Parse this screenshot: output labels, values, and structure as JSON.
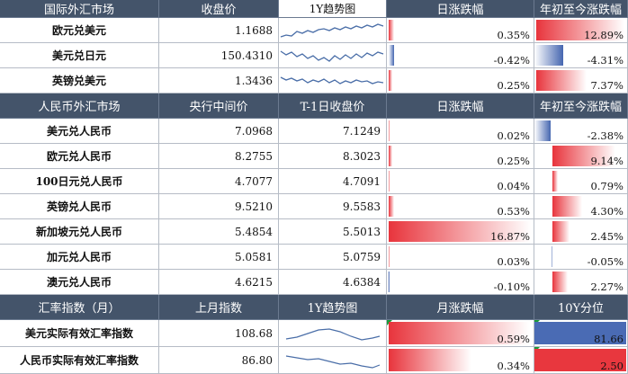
{
  "colors": {
    "header_bg": "#44546a",
    "positive": "#e8343c",
    "negative": "#4566b0",
    "spark_line": "#4a6ea8"
  },
  "section1": {
    "headers": [
      "国际外汇市场",
      "收盘价",
      "1Y趋势图",
      "日涨跌幅",
      "年初至今涨跌幅"
    ],
    "rows": [
      {
        "name": "欧元兑美元",
        "close": "1.1688",
        "day_chg": "0.35%",
        "day_val": 0.35,
        "ytd_chg": "12.89%",
        "ytd_val": 12.89
      },
      {
        "name": "美元兑日元",
        "close": "150.4310",
        "day_chg": "-0.42%",
        "day_val": -0.42,
        "ytd_chg": "-4.31%",
        "ytd_val": -4.31
      },
      {
        "name": "英镑兑美元",
        "close": "1.3436",
        "day_chg": "0.25%",
        "day_val": 0.25,
        "ytd_chg": "7.37%",
        "ytd_val": 7.37
      }
    ]
  },
  "section2": {
    "headers": [
      "人民币外汇市场",
      "央行中间价",
      "T-1日收盘价",
      "日涨跌幅",
      "年初至今涨跌幅"
    ],
    "rows": [
      {
        "name": "美元兑人民币",
        "mid": "7.0968",
        "prev": "7.1249",
        "day_chg": "0.02%",
        "day_val": 0.02,
        "ytd_chg": "-2.38%",
        "ytd_val": -2.38
      },
      {
        "name": "欧元兑人民币",
        "mid": "8.2755",
        "prev": "8.3023",
        "day_chg": "0.25%",
        "day_val": 0.25,
        "ytd_chg": "9.14%",
        "ytd_val": 9.14
      },
      {
        "name": "100日元兑人民币",
        "mid": "4.7077",
        "prev": "4.7091",
        "day_chg": "0.04%",
        "day_val": 0.04,
        "ytd_chg": "0.79%",
        "ytd_val": 0.79
      },
      {
        "name": "英镑兑人民币",
        "mid": "9.5210",
        "prev": "9.5583",
        "day_chg": "0.53%",
        "day_val": 0.53,
        "ytd_chg": "4.30%",
        "ytd_val": 4.3
      },
      {
        "name": "新加坡元兑人民币",
        "mid": "5.4854",
        "prev": "5.5013",
        "day_chg": "16.87%",
        "day_val": 16.87,
        "ytd_chg": "2.45%",
        "ytd_val": 2.45
      },
      {
        "name": "加元兑人民币",
        "mid": "5.0581",
        "prev": "5.0759",
        "day_chg": "0.03%",
        "day_val": 0.03,
        "ytd_chg": "-0.05%",
        "ytd_val": -0.05
      },
      {
        "name": "澳元兑人民币",
        "mid": "4.6215",
        "prev": "4.6384",
        "day_chg": "-0.10%",
        "day_val": -0.1,
        "ytd_chg": "2.27%",
        "ytd_val": 2.27
      }
    ]
  },
  "section3": {
    "headers": [
      "汇率指数（月）",
      "上月指数",
      "1Y趋势图",
      "月涨跌幅",
      "10Y分位"
    ],
    "rows": [
      {
        "name": "美元实际有效汇率指数",
        "last": "108.68",
        "mon_chg": "0.59%",
        "mon_val": 0.59,
        "pct": "81.66",
        "pct_val": 81.66
      },
      {
        "name": "人民币实际有效汇率指数",
        "last": "86.80",
        "mon_chg": "0.34%",
        "mon_val": 0.34,
        "pct": "2.50",
        "pct_val": 2.5
      }
    ]
  }
}
